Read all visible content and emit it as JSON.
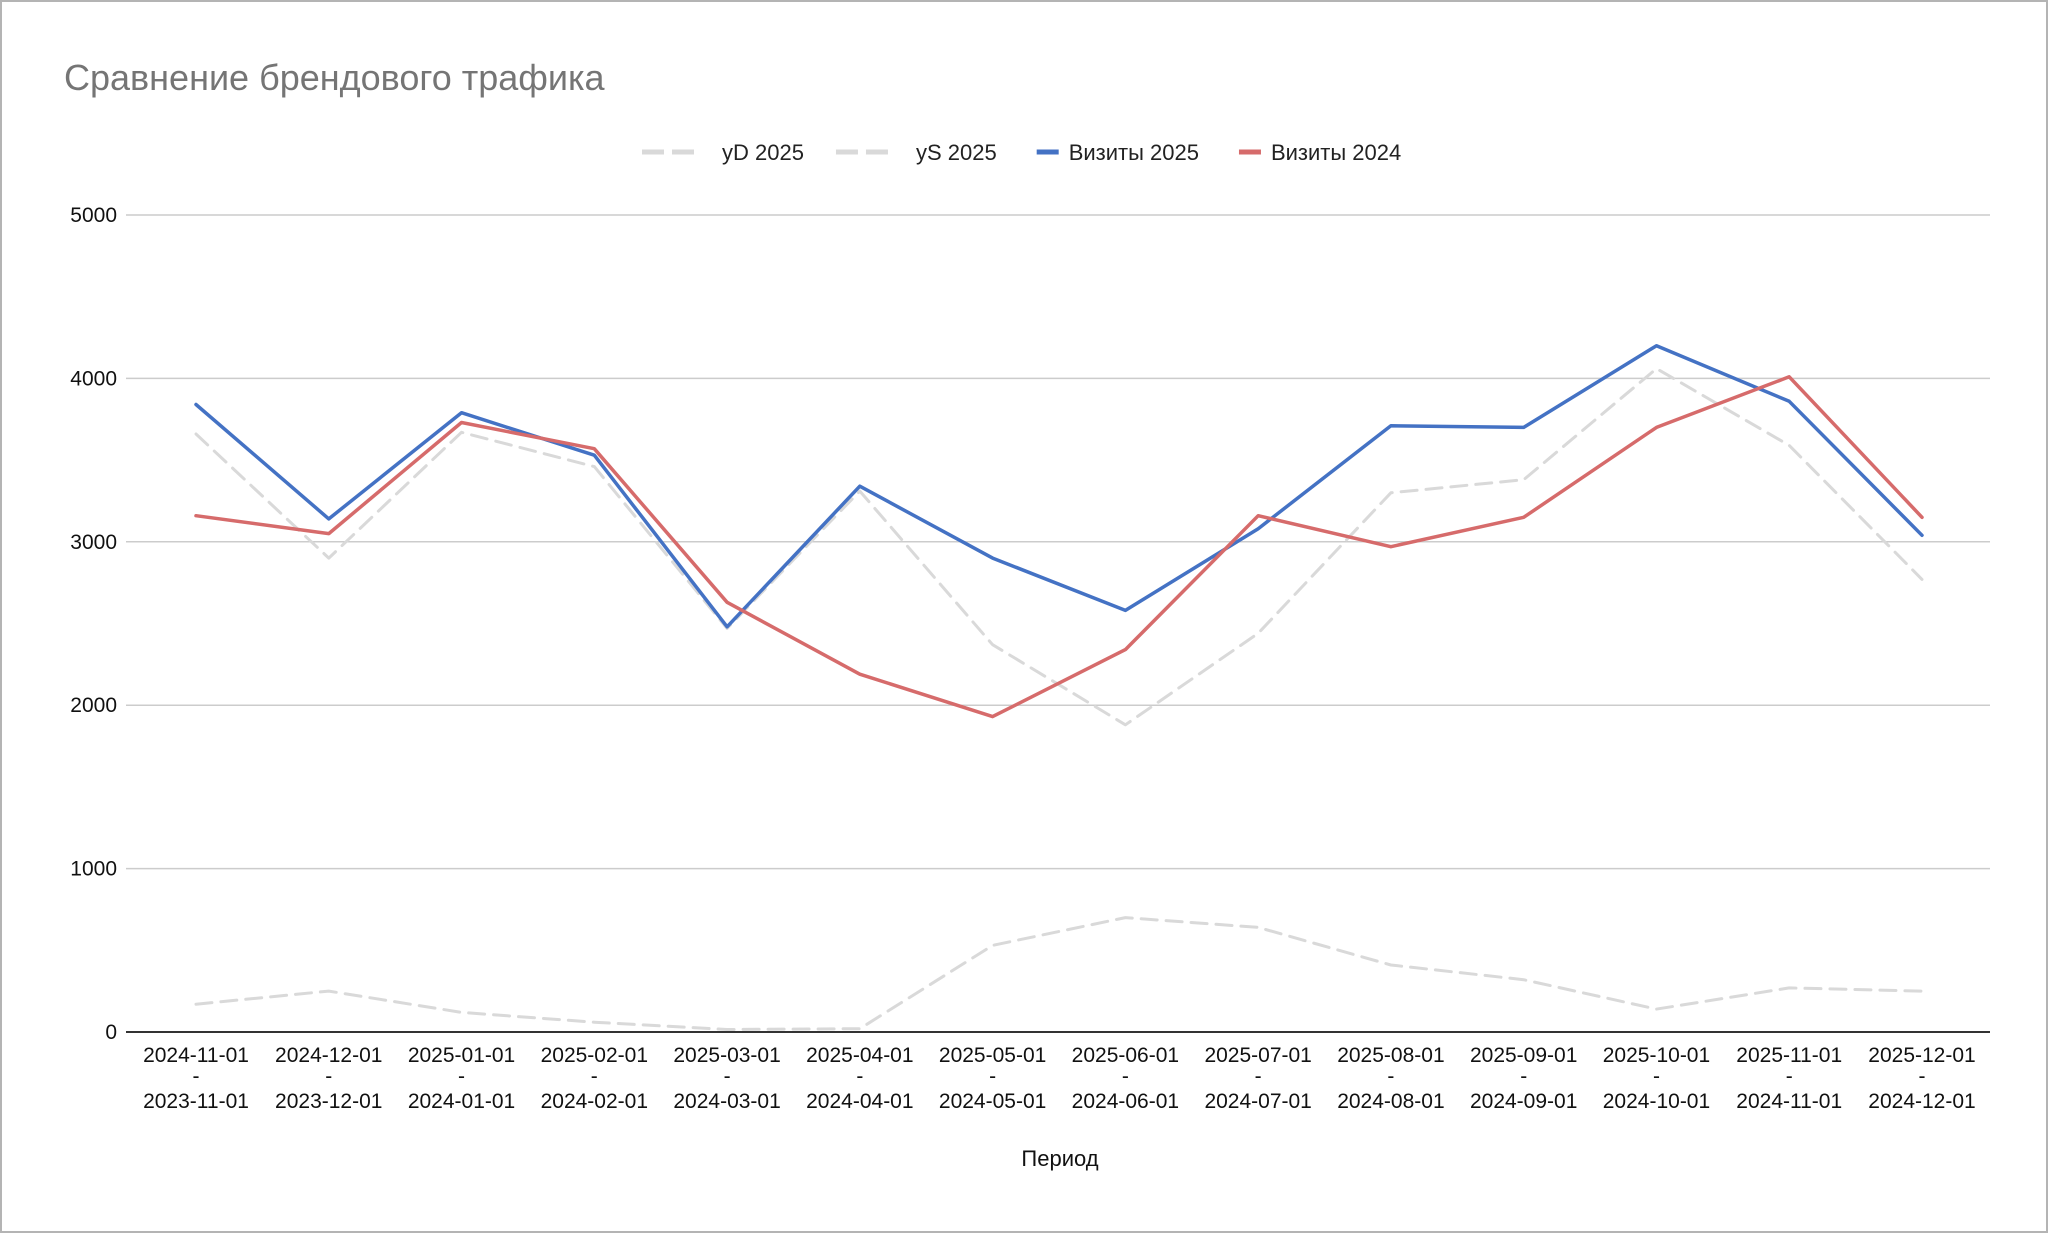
{
  "chart_data": {
    "type": "line",
    "title": "Сравнение брендового трафика",
    "xlabel": "Период",
    "ylabel": "",
    "ylim": [
      0,
      5000
    ],
    "yticks": [
      "0",
      "1000",
      "2000",
      "3000",
      "4000",
      "5000"
    ],
    "grid": true,
    "legend_position": "top",
    "categories": [
      {
        "top": "2024-11-01",
        "mid": "-",
        "bottom": "2023-11-01"
      },
      {
        "top": "2024-12-01",
        "mid": "-",
        "bottom": "2023-12-01"
      },
      {
        "top": "2025-01-01",
        "mid": "-",
        "bottom": "2024-01-01"
      },
      {
        "top": "2025-02-01",
        "mid": "-",
        "bottom": "2024-02-01"
      },
      {
        "top": "2025-03-01",
        "mid": "-",
        "bottom": "2024-03-01"
      },
      {
        "top": "2025-04-01",
        "mid": "-",
        "bottom": "2024-04-01"
      },
      {
        "top": "2025-05-01",
        "mid": "-",
        "bottom": "2024-05-01"
      },
      {
        "top": "2025-06-01",
        "mid": "-",
        "bottom": "2024-06-01"
      },
      {
        "top": "2025-07-01",
        "mid": "-",
        "bottom": "2024-07-01"
      },
      {
        "top": "2025-08-01",
        "mid": "-",
        "bottom": "2024-08-01"
      },
      {
        "top": "2025-09-01",
        "mid": "-",
        "bottom": "2024-09-01"
      },
      {
        "top": "2025-10-01",
        "mid": "-",
        "bottom": "2024-10-01"
      },
      {
        "top": "2025-11-01",
        "mid": "-",
        "bottom": "2024-11-01"
      },
      {
        "top": "2025-12-01",
        "mid": "-",
        "bottom": "2024-12-01"
      }
    ],
    "series": [
      {
        "name": "yD 2025",
        "color": "#d9d9d9",
        "dashed": true,
        "values": [
          170,
          250,
          120,
          60,
          15,
          20,
          530,
          700,
          640,
          410,
          320,
          140,
          270,
          250
        ]
      },
      {
        "name": "yS 2025",
        "color": "#d9d9d9",
        "dashed": true,
        "values": [
          3660,
          2900,
          3670,
          3460,
          2470,
          3310,
          2370,
          1880,
          2440,
          3300,
          3380,
          4060,
          3590,
          2770
        ]
      },
      {
        "name": "Визиты 2025",
        "color": "#4472c4",
        "dashed": false,
        "values": [
          3840,
          3140,
          3790,
          3530,
          2480,
          3340,
          2900,
          2580,
          3080,
          3710,
          3700,
          4200,
          3860,
          3040
        ]
      },
      {
        "name": "Визиты 2024",
        "color": "#d66b6b",
        "dashed": false,
        "values": [
          3160,
          3050,
          3730,
          3570,
          2630,
          2190,
          1930,
          2340,
          3160,
          2970,
          3150,
          3700,
          4010,
          3150
        ]
      }
    ]
  }
}
